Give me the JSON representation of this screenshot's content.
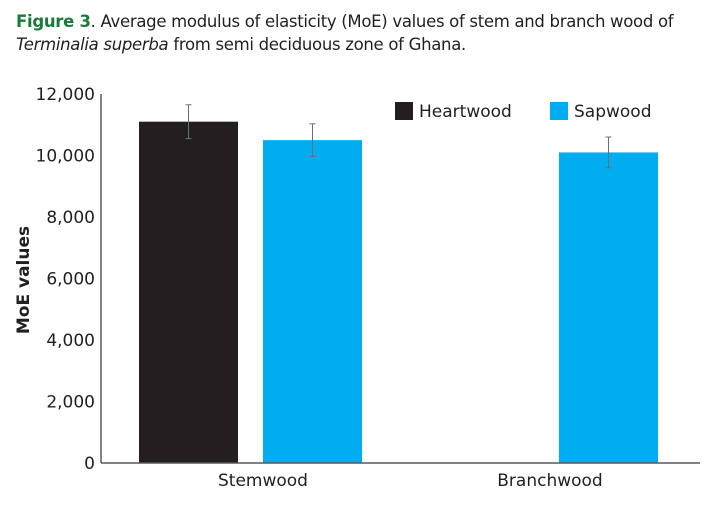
{
  "caption": {
    "label": "Figure 3",
    "text_1": ". Average modulus of elasticity (MoE) values of stem and branch wood of ",
    "species": "Terminalia superba",
    "text_2": " from semi deciduous zone of Ghana."
  },
  "colors": {
    "heartwood": "#231f20",
    "sapwood": "#00aeef",
    "caption_accent": "#1a7a3a",
    "axis": "#595959"
  },
  "chart_data": {
    "type": "bar",
    "title": "",
    "xlabel": "",
    "ylabel": "MoE values",
    "ylim": [
      0,
      12000
    ],
    "yticks": [
      0,
      2000,
      4000,
      6000,
      8000,
      10000,
      12000
    ],
    "ytick_labels": [
      "0",
      "2,000",
      "4,000",
      "6,000",
      "8,000",
      "10,000",
      "12,000"
    ],
    "categories": [
      "Stemwood",
      "Branchwood"
    ],
    "legend_position": "top-right",
    "grid": false,
    "series": [
      {
        "name": "Heartwood",
        "values": [
          11100,
          null
        ],
        "errors": [
          550,
          null
        ]
      },
      {
        "name": "Sapwood",
        "values": [
          10500,
          10100
        ],
        "errors": [
          530,
          500
        ]
      }
    ]
  }
}
